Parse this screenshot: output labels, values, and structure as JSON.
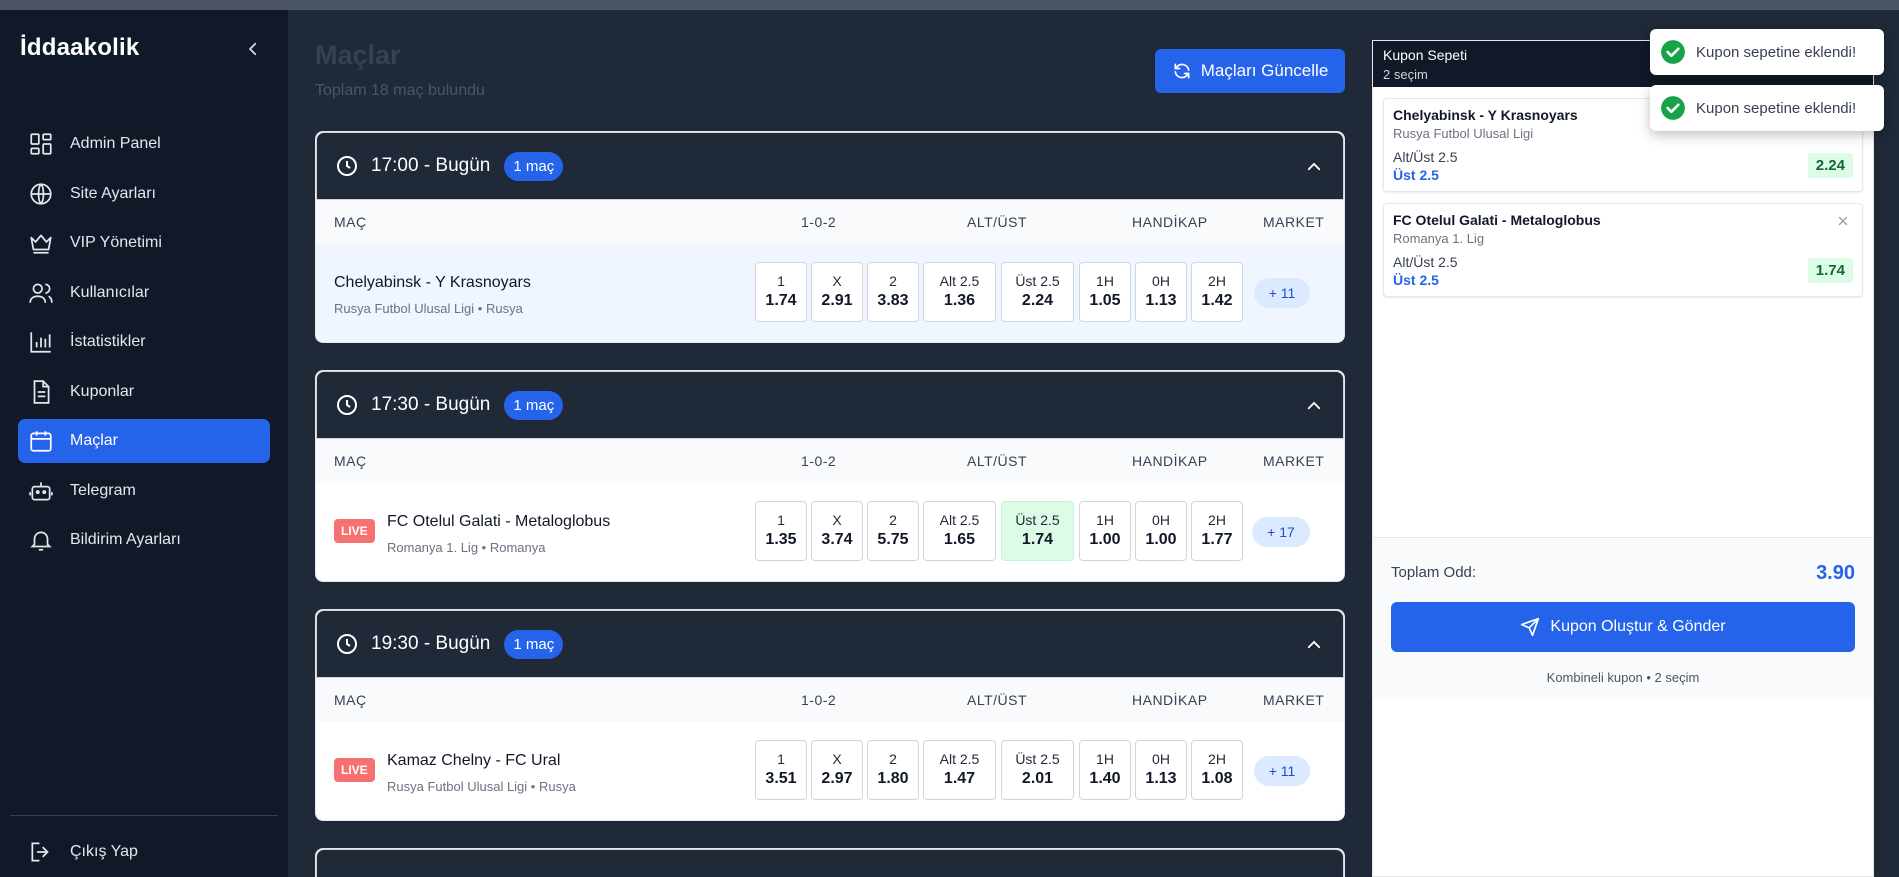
{
  "app": {
    "logo": "İddaakolik"
  },
  "sidebar": {
    "items": [
      {
        "label": "Admin Panel",
        "icon": "dashboard-icon",
        "active": false
      },
      {
        "label": "Site Ayarları",
        "icon": "globe-icon",
        "active": false
      },
      {
        "label": "VIP Yönetimi",
        "icon": "crown-icon",
        "active": false
      },
      {
        "label": "Kullanıcılar",
        "icon": "users-icon",
        "active": false
      },
      {
        "label": "İstatistikler",
        "icon": "chart-icon",
        "active": false
      },
      {
        "label": "Kuponlar",
        "icon": "document-icon",
        "active": false
      },
      {
        "label": "Maçlar",
        "icon": "calendar-icon",
        "active": true
      },
      {
        "label": "Telegram",
        "icon": "bot-icon",
        "active": false
      },
      {
        "label": "Bildirim Ayarları",
        "icon": "bell-icon",
        "active": false
      }
    ],
    "logout": "Çıkış Yap"
  },
  "main": {
    "title": "Maçlar",
    "subtitle": "Toplam 18 maç bulundu",
    "refresh_label": "Maçları Güncelle",
    "columns": {
      "match": "MAÇ",
      "result": "1-0-2",
      "overunder": "ALT/ÜST",
      "handicap": "HANDİKAP",
      "market": "MARKET"
    },
    "groups": [
      {
        "time": "17:00 - Bugün",
        "badge": "1 maç",
        "match": {
          "live": "",
          "name": "Chelyabinsk - Y Krasnoyars",
          "meta": "Rusya Futbol Ulusal Ligi • Rusya",
          "odds": [
            {
              "label": "1",
              "value": "1.74"
            },
            {
              "label": "X",
              "value": "2.91"
            },
            {
              "label": "2",
              "value": "3.83"
            },
            {
              "label": "Alt 2.5",
              "value": "1.36"
            },
            {
              "label": "Üst 2.5",
              "value": "2.24"
            },
            {
              "label": "1H",
              "value": "1.05"
            },
            {
              "label": "0H",
              "value": "1.13"
            },
            {
              "label": "2H",
              "value": "1.42"
            }
          ],
          "more": "+ 11"
        }
      },
      {
        "time": "17:30 - Bugün",
        "badge": "1 maç",
        "match": {
          "live": "LIVE",
          "name": "FC Otelul Galati - Metaloglobus",
          "meta": "Romanya 1. Lig • Romanya",
          "odds": [
            {
              "label": "1",
              "value": "1.35"
            },
            {
              "label": "X",
              "value": "3.74"
            },
            {
              "label": "2",
              "value": "5.75"
            },
            {
              "label": "Alt 2.5",
              "value": "1.65"
            },
            {
              "label": "Üst 2.5",
              "value": "1.74"
            },
            {
              "label": "1H",
              "value": "1.00"
            },
            {
              "label": "0H",
              "value": "1.00"
            },
            {
              "label": "2H",
              "value": "1.77"
            }
          ],
          "more": "+ 17"
        }
      },
      {
        "time": "19:30 - Bugün",
        "badge": "1 maç",
        "match": {
          "live": "LIVE",
          "name": "Kamaz Chelny - FC Ural",
          "meta": "Rusya Futbol Ulusal Ligi • Rusya",
          "odds": [
            {
              "label": "1",
              "value": "3.51"
            },
            {
              "label": "X",
              "value": "2.97"
            },
            {
              "label": "2",
              "value": "1.80"
            },
            {
              "label": "Alt 2.5",
              "value": "1.47"
            },
            {
              "label": "Üst 2.5",
              "value": "2.01"
            },
            {
              "label": "1H",
              "value": "1.40"
            },
            {
              "label": "0H",
              "value": "1.13"
            },
            {
              "label": "2H",
              "value": "1.08"
            }
          ],
          "more": "+ 11"
        }
      }
    ]
  },
  "coupon": {
    "title": "Kupon Sepeti",
    "subtitle": "2 seçim",
    "items": [
      {
        "match": "Chelyabinsk - Y Krasnoyars",
        "league": "Rusya Futbol Ulusal Ligi",
        "market": "Alt/Üst 2.5",
        "pick": "Üst 2.5",
        "odd": "2.24"
      },
      {
        "match": "FC Otelul Galati - Metaloglobus",
        "league": "Romanya 1. Lig",
        "market": "Alt/Üst 2.5",
        "pick": "Üst 2.5",
        "odd": "1.74"
      }
    ],
    "total_label": "Toplam Odd:",
    "total_value": "3.90",
    "submit_label": "Kupon Oluştur & Gönder",
    "note": "Kombineli kupon • 2 seçim"
  },
  "toasts": [
    "Kupon sepetine eklendi!",
    "Kupon sepetine eklendi!"
  ],
  "colors": {
    "accent": "#2563eb",
    "sidebar": "#111827",
    "success": "#16a34a",
    "live": "#f87171"
  }
}
